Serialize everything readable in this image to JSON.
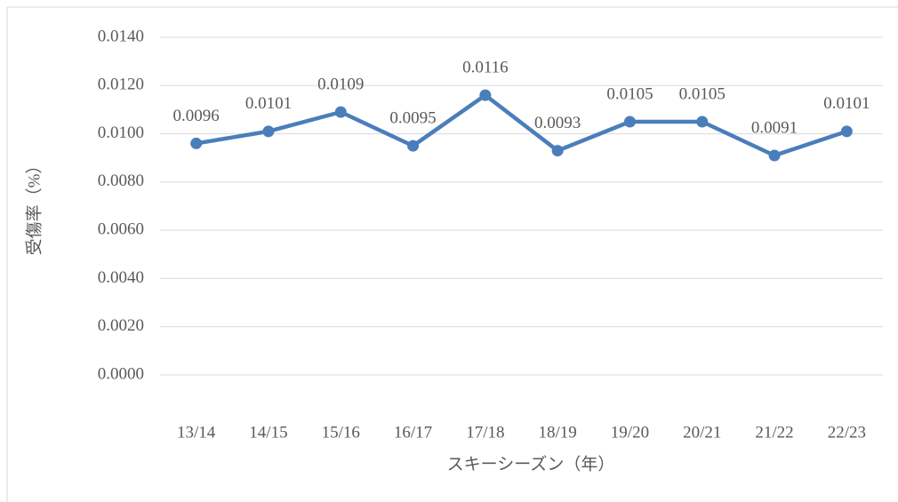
{
  "chart_data": {
    "type": "line",
    "x_label": "スキーシーズン（年）",
    "y_label": "受傷率（%）",
    "categories": [
      "13/14",
      "14/15",
      "15/16",
      "16/17",
      "17/18",
      "18/19",
      "19/20",
      "20/21",
      "21/22",
      "22/23"
    ],
    "values": [
      0.0096,
      0.0101,
      0.0109,
      0.0095,
      0.0116,
      0.0093,
      0.0105,
      0.0105,
      0.0091,
      0.0101
    ],
    "color": "#4a7ebb",
    "ylim": [
      0,
      0.014
    ],
    "yticks": [
      {
        "value": 0,
        "label": "0.0000"
      },
      {
        "value": 0.002,
        "label": "0.0020"
      },
      {
        "value": 0.004,
        "label": "0.0040"
      },
      {
        "value": 0.006,
        "label": "0.0060"
      },
      {
        "value": 0.008,
        "label": "0.0080"
      },
      {
        "value": 0.01,
        "label": "0.0100"
      },
      {
        "value": 0.012,
        "label": "0.0120"
      },
      {
        "value": 0.014,
        "label": "0.0140"
      }
    ],
    "grid": true
  }
}
